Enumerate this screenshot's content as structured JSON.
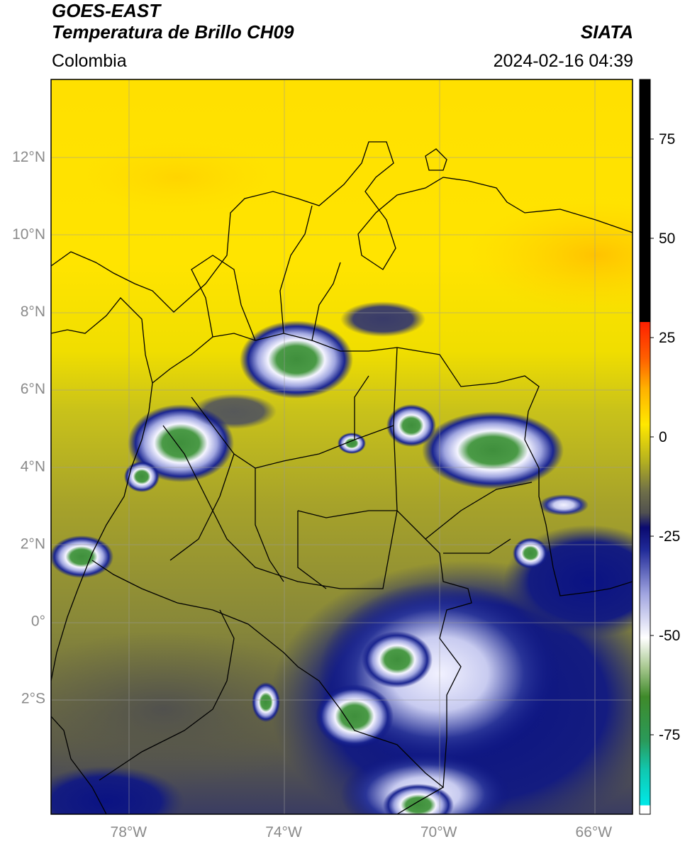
{
  "header": {
    "title_line1": "GOES-EAST",
    "title_line2": "Temperatura de Brillo CH09",
    "region": "Colombia",
    "agency": "SIATA",
    "timestamp": "2024-02-16 04:39"
  },
  "map": {
    "lon_range": [
      -80,
      -65
    ],
    "lat_range": [
      -5,
      14
    ],
    "lat_ticks": [
      {
        "value": 12,
        "label": "12°N"
      },
      {
        "value": 10,
        "label": "10°N"
      },
      {
        "value": 8,
        "label": "8°N"
      },
      {
        "value": 6,
        "label": "6°N"
      },
      {
        "value": 4,
        "label": "4°N"
      },
      {
        "value": 2,
        "label": "2°N"
      },
      {
        "value": 0,
        "label": "0°"
      },
      {
        "value": -2,
        "label": "2°S"
      }
    ],
    "lon_ticks": [
      {
        "value": -78,
        "label": "78°W"
      },
      {
        "value": -74,
        "label": "74°W"
      },
      {
        "value": -70,
        "label": "70°W"
      },
      {
        "value": -66,
        "label": "66°W"
      }
    ],
    "colors": {
      "warm_yellow": "#ffe400",
      "olive": "#9e9c26",
      "dark_olive": "#5a5a40",
      "navy": "#0a1283",
      "white_cloud": "#f2f2ff",
      "green_core": "#3f8f3c",
      "grid": "#9a9a9a"
    }
  },
  "colorbar": {
    "min": -95,
    "max": 90,
    "tick_labels": [
      {
        "value": 75,
        "label": "75"
      },
      {
        "value": 50,
        "label": "50"
      },
      {
        "value": 25,
        "label": "25"
      },
      {
        "value": 0,
        "label": "0"
      },
      {
        "value": -25,
        "label": "-25"
      },
      {
        "value": -50,
        "label": "-50"
      },
      {
        "value": -75,
        "label": "-75"
      }
    ]
  }
}
